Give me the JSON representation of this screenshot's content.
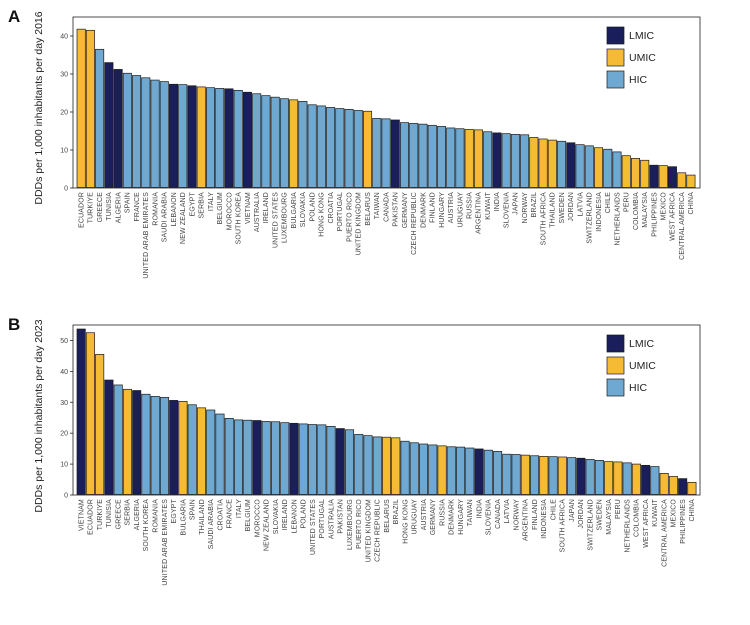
{
  "colors": {
    "LMIC": "#1a1f5c",
    "UMIC": "#f6bb35",
    "HIC": "#6fa8d0",
    "edge": "#1a1a1a"
  },
  "legend": [
    "LMIC",
    "UMIC",
    "HIC"
  ],
  "chart_data": [
    {
      "panel": "A",
      "type": "bar",
      "ylabel": "DDDs per 1,000 inhabitants per day 2016",
      "ylim": [
        0,
        45
      ],
      "yticks": [
        0,
        10,
        20,
        30,
        40
      ],
      "legend_position": "top-right",
      "categories": [
        "ECUADOR",
        "TURKIYE",
        "GREECE",
        "TUNISIA",
        "ALGERIA",
        "SPAIN",
        "FRANCE",
        "UNITED ARAB EMIRATES",
        "ROMANIA",
        "SAUDI ARABIA",
        "LEBANON",
        "NEW ZEALAND",
        "EGYPT",
        "SERBIA",
        "ITALY",
        "BELGIUM",
        "MOROCCO",
        "SOUTH KOREA",
        "VIETNAM",
        "AUSTRALIA",
        "IRELAND",
        "UNITED STATES",
        "LUXEMBOURG",
        "BULGARIA",
        "SLOVAKIA",
        "POLAND",
        "HONG KONG",
        "CROATIA",
        "PORTUGAL",
        "PUERTO RICO",
        "UNITED KINGDOM",
        "BELARUS",
        "TAIWAN",
        "CANADA",
        "PAKISTAN",
        "GERMANY",
        "CZECH REPUBLIC",
        "DENMARK",
        "FINLAND",
        "HUNGARY",
        "AUSTRIA",
        "URUGUAY",
        "RUSSIA",
        "ARGENTINA",
        "KUWAIT",
        "INDIA",
        "SLOVENIA",
        "JAPAN",
        "NORWAY",
        "BRAZIL",
        "SOUTH AFRICA",
        "THAILAND",
        "SWEDEN",
        "JORDAN",
        "LATVIA",
        "SWITZERLAND",
        "INDONESIA",
        "CHILE",
        "NETHERLANDS",
        "PERU",
        "COLOMBIA",
        "MALAYSIA",
        "PHILIPPINES",
        "MEXICO",
        "WEST AFRICA",
        "CENTRAL AMERICA",
        "CHINA"
      ],
      "values": [
        41.8,
        41.5,
        36.5,
        33.0,
        31.2,
        30.2,
        29.6,
        29.0,
        28.4,
        28.0,
        27.3,
        27.2,
        26.9,
        26.6,
        26.4,
        26.2,
        26.1,
        25.7,
        25.2,
        24.8,
        24.3,
        23.9,
        23.5,
        23.2,
        22.8,
        21.9,
        21.6,
        21.2,
        20.9,
        20.7,
        20.4,
        20.2,
        18.3,
        18.2,
        17.9,
        17.2,
        17.0,
        16.8,
        16.5,
        16.2,
        15.8,
        15.6,
        15.4,
        15.3,
        14.8,
        14.5,
        14.3,
        14.1,
        14.0,
        13.3,
        12.9,
        12.6,
        12.3,
        11.9,
        11.4,
        11.1,
        10.6,
        10.2,
        9.5,
        8.5,
        7.8,
        7.3,
        6.0,
        5.9,
        5.6,
        4.0,
        3.4
      ],
      "income_group": [
        "UMIC",
        "UMIC",
        "HIC",
        "LMIC",
        "LMIC",
        "HIC",
        "HIC",
        "HIC",
        "HIC",
        "HIC",
        "LMIC",
        "HIC",
        "LMIC",
        "UMIC",
        "HIC",
        "HIC",
        "LMIC",
        "HIC",
        "LMIC",
        "HIC",
        "HIC",
        "HIC",
        "HIC",
        "UMIC",
        "HIC",
        "HIC",
        "HIC",
        "HIC",
        "HIC",
        "HIC",
        "HIC",
        "UMIC",
        "HIC",
        "HIC",
        "LMIC",
        "HIC",
        "HIC",
        "HIC",
        "HIC",
        "HIC",
        "HIC",
        "HIC",
        "UMIC",
        "UMIC",
        "HIC",
        "LMIC",
        "HIC",
        "HIC",
        "HIC",
        "UMIC",
        "UMIC",
        "UMIC",
        "HIC",
        "LMIC",
        "HIC",
        "HIC",
        "UMIC",
        "HIC",
        "HIC",
        "UMIC",
        "UMIC",
        "UMIC",
        "LMIC",
        "UMIC",
        "LMIC",
        "UMIC",
        "UMIC"
      ]
    },
    {
      "panel": "B",
      "type": "bar",
      "ylabel": "DDDs per 1,000 inhabitants per day 2023",
      "ylim": [
        0,
        55
      ],
      "yticks": [
        0,
        10,
        20,
        30,
        40,
        50
      ],
      "legend_position": "top-right",
      "categories": [
        "VIETNAM",
        "ECUADOR",
        "TURKIYE",
        "TUNISIA",
        "GREECE",
        "SERBIA",
        "ALGERIA",
        "SOUTH KOREA",
        "ROMANIA",
        "UNITED ARAB EMIRATES",
        "EGYPT",
        "BULGARIA",
        "SPAIN",
        "THAILAND",
        "SAUDI ARABIA",
        "CROATIA",
        "FRANCE",
        "ITALY",
        "BELGIUM",
        "MOROCCO",
        "NEW ZEALAND",
        "SLOVAKIA",
        "IRELAND",
        "LEBANON",
        "POLAND",
        "UNITED STATES",
        "PORTUGAL",
        "AUSTRALIA",
        "PAKISTAN",
        "LUXEMBOURG",
        "PUERTO RICO",
        "UNITED KINGDOM",
        "CZECH REPUBLIC",
        "BELARUS",
        "BRAZIL",
        "HONG KONG",
        "URUGUAY",
        "AUSTRIA",
        "GERMANY",
        "RUSSIA",
        "DENMARK",
        "HUNGARY",
        "TAIWAN",
        "INDIA",
        "SLOVENIA",
        "CANADA",
        "LATVIA",
        "NORWAY",
        "ARGENTINA",
        "FINLAND",
        "INDONESIA",
        "CHILE",
        "SOUTH AFRICA",
        "JAPAN",
        "JORDAN",
        "SWITZERLAND",
        "SWEDEN",
        "MALAYSIA",
        "PERU",
        "NETHERLANDS",
        "COLOMBIA",
        "WEST AFRICA",
        "KUWAIT",
        "CENTRAL AMERICA",
        "MEXICO",
        "PHILIPPINES",
        "CHINA"
      ],
      "values": [
        53.7,
        52.5,
        45.5,
        37.2,
        35.6,
        34.2,
        33.8,
        32.6,
        31.9,
        31.6,
        30.6,
        30.3,
        29.2,
        28.2,
        27.5,
        26.2,
        24.8,
        24.3,
        24.2,
        24.1,
        23.8,
        23.7,
        23.4,
        23.2,
        23.0,
        22.8,
        22.7,
        22.2,
        21.5,
        21.1,
        19.6,
        19.2,
        18.8,
        18.7,
        18.5,
        17.4,
        16.9,
        16.5,
        16.2,
        15.9,
        15.6,
        15.5,
        15.2,
        14.9,
        14.5,
        14.1,
        13.2,
        13.1,
        12.9,
        12.7,
        12.5,
        12.4,
        12.3,
        12.1,
        11.9,
        11.5,
        11.2,
        10.8,
        10.7,
        10.4,
        10.0,
        9.6,
        9.2,
        7.0,
        6.0,
        5.3,
        4.1
      ],
      "income_group": [
        "LMIC",
        "UMIC",
        "UMIC",
        "LMIC",
        "HIC",
        "UMIC",
        "LMIC",
        "HIC",
        "HIC",
        "HIC",
        "LMIC",
        "UMIC",
        "HIC",
        "UMIC",
        "HIC",
        "HIC",
        "HIC",
        "HIC",
        "HIC",
        "LMIC",
        "HIC",
        "HIC",
        "HIC",
        "LMIC",
        "HIC",
        "HIC",
        "HIC",
        "HIC",
        "LMIC",
        "HIC",
        "HIC",
        "HIC",
        "HIC",
        "UMIC",
        "UMIC",
        "HIC",
        "HIC",
        "HIC",
        "HIC",
        "UMIC",
        "HIC",
        "HIC",
        "HIC",
        "LMIC",
        "HIC",
        "HIC",
        "HIC",
        "HIC",
        "UMIC",
        "HIC",
        "UMIC",
        "HIC",
        "UMIC",
        "HIC",
        "LMIC",
        "HIC",
        "HIC",
        "UMIC",
        "UMIC",
        "HIC",
        "UMIC",
        "LMIC",
        "HIC",
        "UMIC",
        "UMIC",
        "LMIC",
        "UMIC"
      ]
    }
  ]
}
